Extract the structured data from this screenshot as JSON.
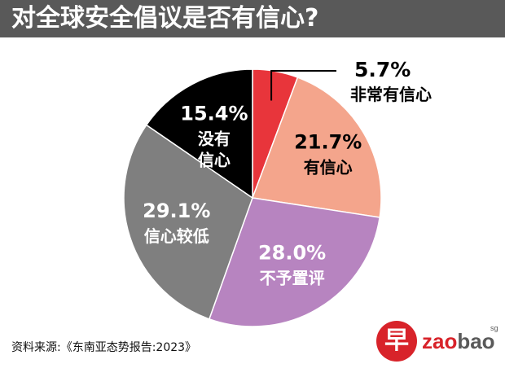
{
  "header": {
    "title": "对全球安全倡议是否有信心?"
  },
  "chart_data": {
    "type": "pie",
    "title": "对全球安全倡议是否有信心?",
    "start": "12 o'clock, clockwise",
    "slices": [
      {
        "label": "非常有信心",
        "value": 5.7,
        "value_label": "5.7%",
        "color": "#e8353b",
        "label_position": "outside"
      },
      {
        "label": "有信心",
        "value": 21.7,
        "value_label": "21.7%",
        "color": "#f4a58c",
        "label_position": "inside"
      },
      {
        "label": "不予置评",
        "value": 28.0,
        "value_label": "28.0%",
        "color": "#b784c0",
        "label_position": "inside"
      },
      {
        "label": "信心较低",
        "value": 29.1,
        "value_label": "29.1%",
        "color": "#7f7f7f",
        "label_position": "inside"
      },
      {
        "label": "没有信心",
        "value": 15.4,
        "value_label": "15.4%",
        "color": "#000000",
        "label_position": "inside"
      }
    ]
  },
  "footer": {
    "source": "资料来源:《东南亚态势报告:2023》"
  },
  "logo": {
    "glyph": "早",
    "word_main": "zao",
    "word_second": "bao",
    "suffix": "sg"
  }
}
